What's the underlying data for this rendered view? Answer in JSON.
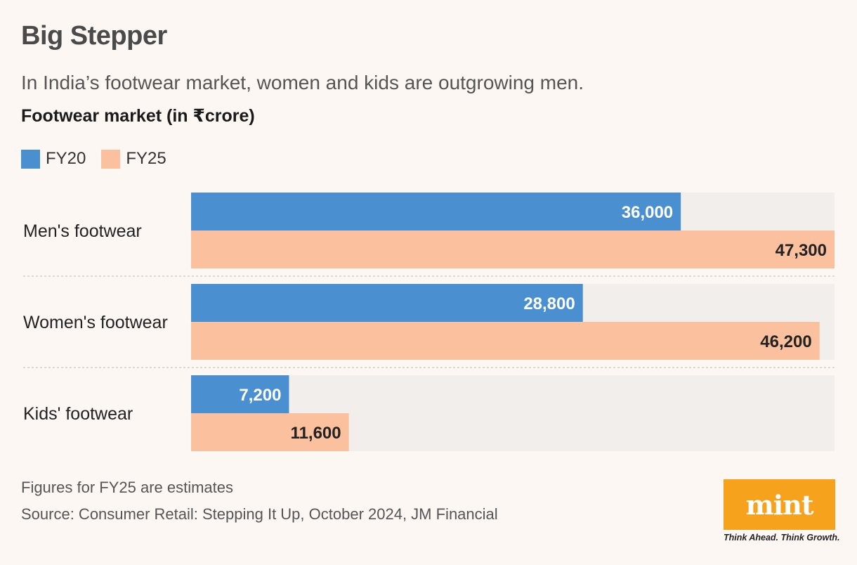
{
  "header": {
    "title": "Big Stepper",
    "subtitle": "In India’s footwear market, women and kids are outgrowing men.",
    "chart_heading": "Footwear market (in ₹crore)"
  },
  "chart_data": {
    "type": "bar",
    "orientation": "horizontal",
    "title": "Footwear market (in ₹crore)",
    "categories": [
      "Men's footwear",
      "Women's footwear",
      "Kids' footwear"
    ],
    "series": [
      {
        "name": "FY20",
        "values": [
          36000,
          28800,
          7200
        ],
        "labels": [
          "36,000",
          "28,800",
          "7,200"
        ],
        "color": "#4a8fcf"
      },
      {
        "name": "FY25",
        "values": [
          47300,
          46200,
          11600
        ],
        "labels": [
          "47,300",
          "46,200",
          "11,600"
        ],
        "color": "#fbc19e"
      }
    ],
    "xlim": [
      0,
      47300
    ],
    "grid": false
  },
  "colors": {
    "background": "#fdf7f4",
    "track": "#f2eeec",
    "fy20": "#4a8fcf",
    "fy25": "#fbc19e",
    "brand": "#f7a21d"
  },
  "footer": {
    "note": "Figures for FY25 are estimates",
    "source": "Source: Consumer Retail: Stepping It Up, October 2024, JM Financial"
  },
  "logo": {
    "word": "mint",
    "tagline": "Think Ahead. Think Growth."
  }
}
